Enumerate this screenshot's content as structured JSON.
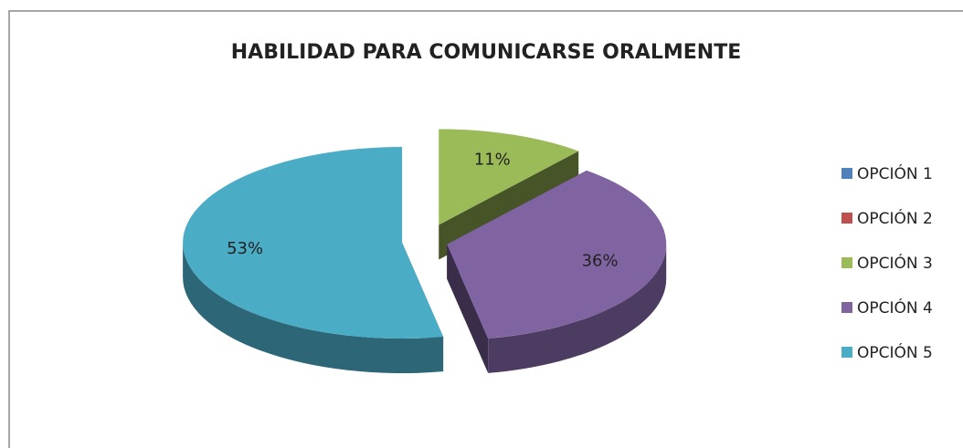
{
  "chart_data": {
    "type": "pie3d",
    "title": "HABILIDAD PARA COMUNICARSE ORALMENTE",
    "categories": [
      "OPCIÓN 1",
      "OPCIÓN 2",
      "OPCIÓN 3",
      "OPCIÓN 4",
      "OPCIÓN 5"
    ],
    "values": [
      0,
      0,
      11,
      36,
      53
    ],
    "value_labels": [
      null,
      null,
      "11%",
      "36%",
      "53%"
    ],
    "colors": [
      "#4f81bd",
      "#c0504d",
      "#9bbb59",
      "#8064a2",
      "#4bacc6"
    ],
    "legend": "right"
  }
}
